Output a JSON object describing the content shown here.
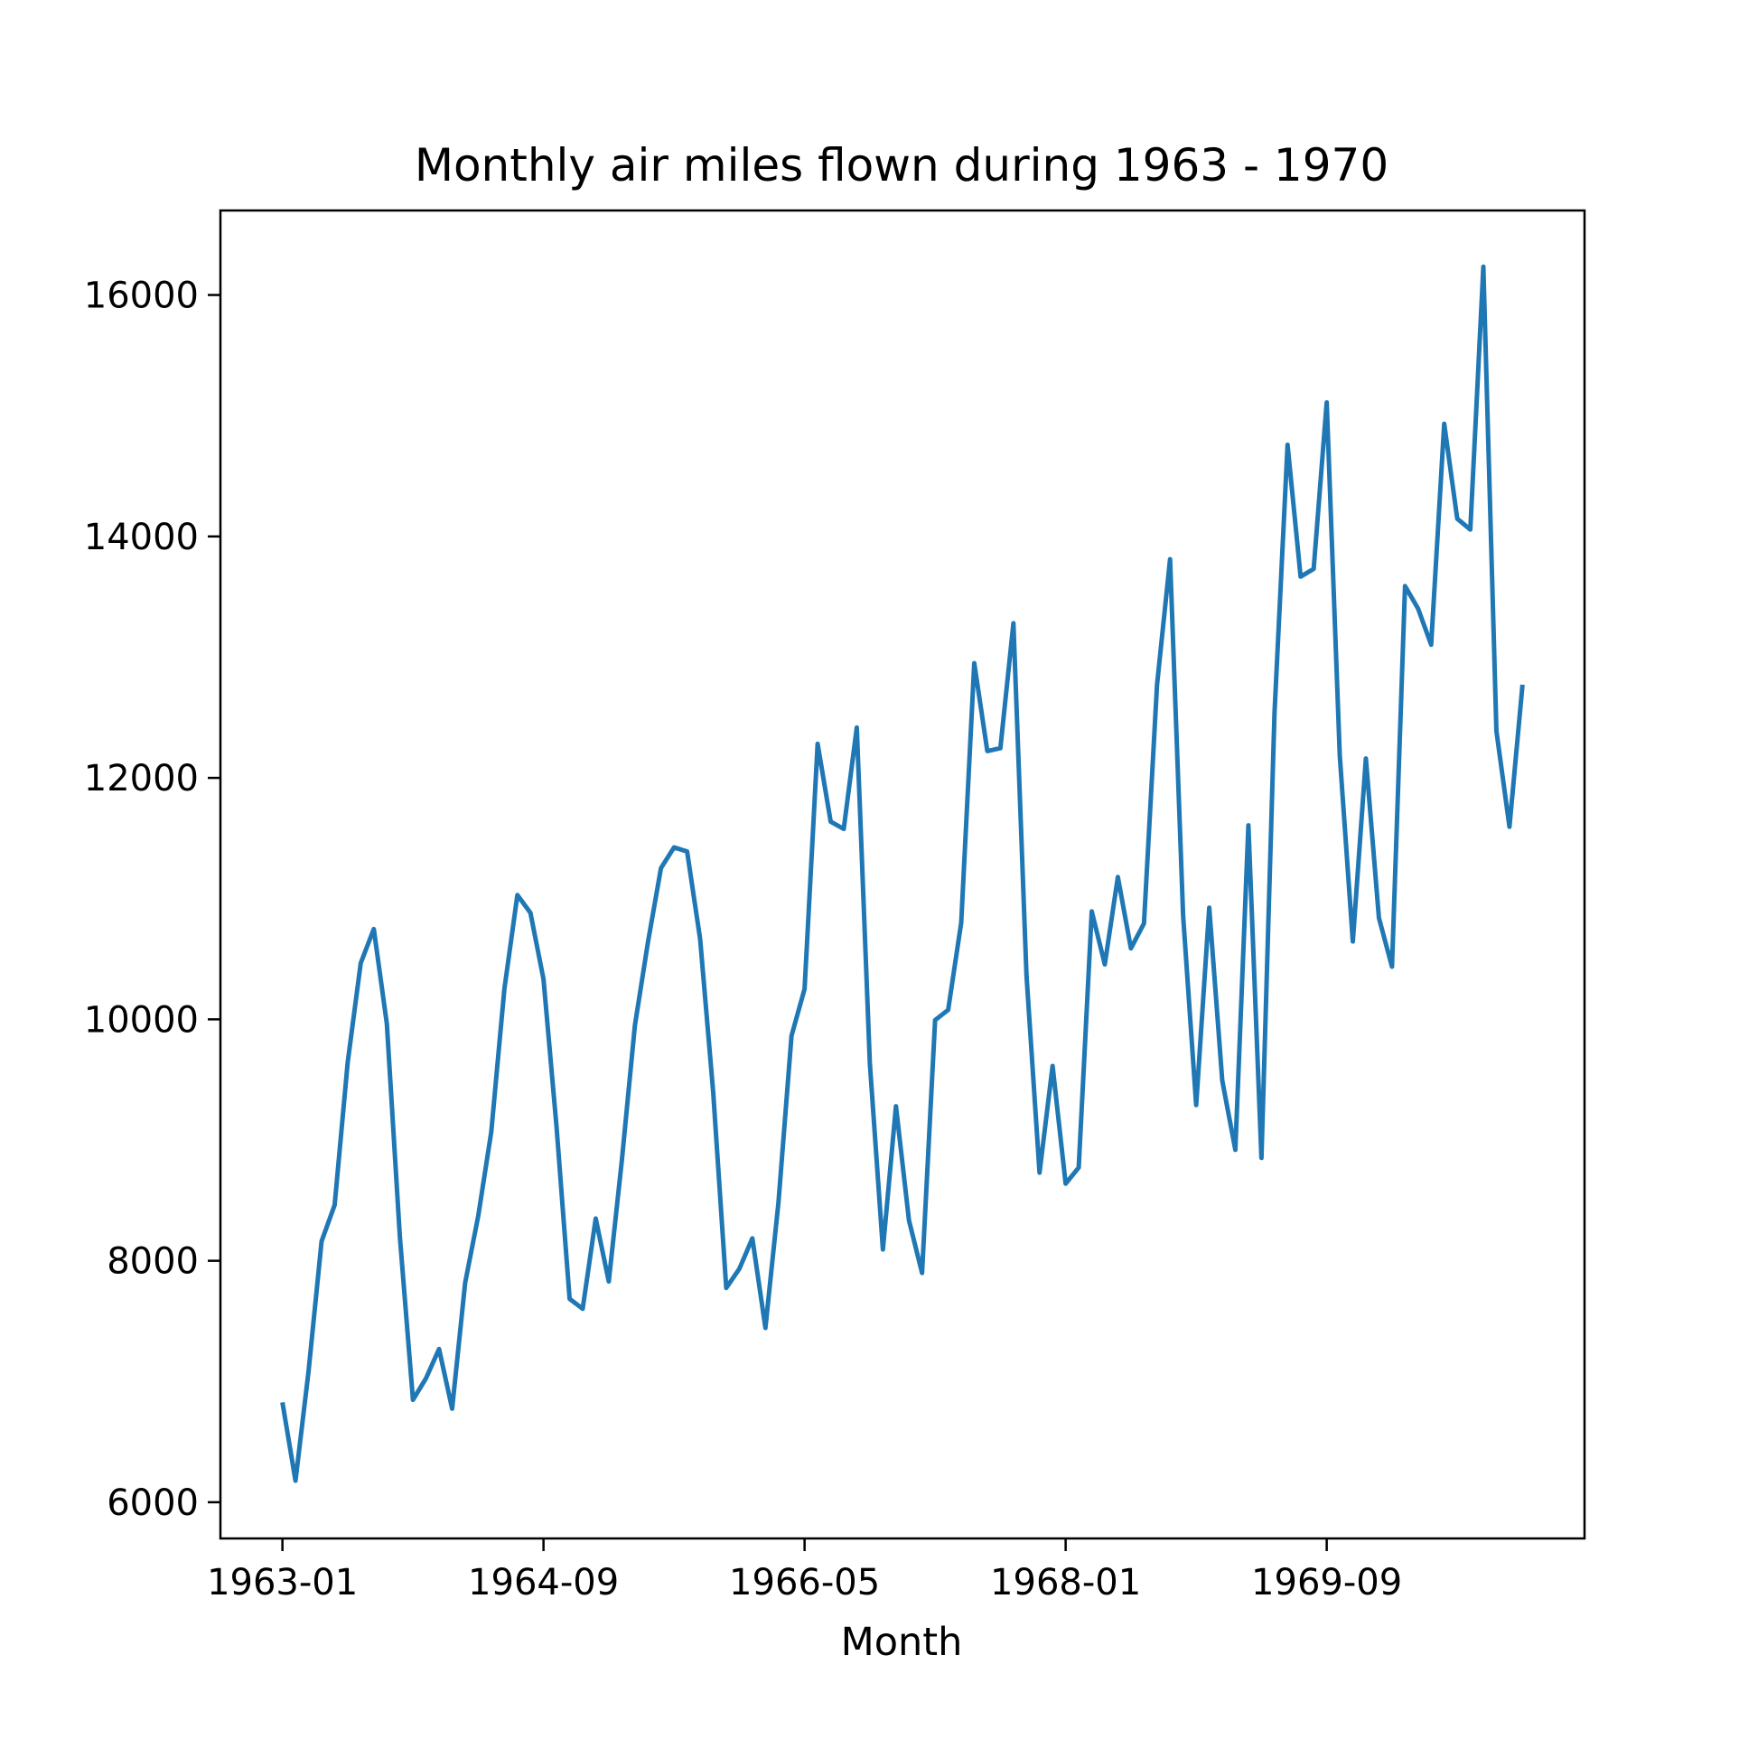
{
  "chart_data": {
    "type": "line",
    "title": "Monthly air miles flown during 1963 - 1970",
    "xlabel": "Month",
    "ylabel": "",
    "x_start": "1963-01",
    "x_end": "1970-12",
    "x_ticks": [
      "1963-01",
      "1964-09",
      "1966-05",
      "1968-01",
      "1969-09"
    ],
    "ylim": [
      5700,
      16700
    ],
    "y_ticks": [
      6000,
      8000,
      10000,
      12000,
      14000,
      16000
    ],
    "grid": false,
    "legend": "none",
    "series": [
      {
        "color": "#1f77b4",
        "x": [
          "1963-01",
          "1963-02",
          "1963-03",
          "1963-04",
          "1963-05",
          "1963-06",
          "1963-07",
          "1963-08",
          "1963-09",
          "1963-10",
          "1963-11",
          "1963-12",
          "1964-01",
          "1964-02",
          "1964-03",
          "1964-04",
          "1964-05",
          "1964-06",
          "1964-07",
          "1964-08",
          "1964-09",
          "1964-10",
          "1964-11",
          "1964-12",
          "1965-01",
          "1965-02",
          "1965-03",
          "1965-04",
          "1965-05",
          "1965-06",
          "1965-07",
          "1965-08",
          "1965-09",
          "1965-10",
          "1965-11",
          "1965-12",
          "1966-01",
          "1966-02",
          "1966-03",
          "1966-04",
          "1966-05",
          "1966-06",
          "1966-07",
          "1966-08",
          "1966-09",
          "1966-10",
          "1966-11",
          "1966-12",
          "1967-01",
          "1967-02",
          "1967-03",
          "1967-04",
          "1967-05",
          "1967-06",
          "1967-07",
          "1967-08",
          "1967-09",
          "1967-10",
          "1967-11",
          "1967-12",
          "1968-01",
          "1968-02",
          "1968-03",
          "1968-04",
          "1968-05",
          "1968-06",
          "1968-07",
          "1968-08",
          "1968-09",
          "1968-10",
          "1968-11",
          "1968-12",
          "1969-01",
          "1969-02",
          "1969-03",
          "1969-04",
          "1969-05",
          "1969-06",
          "1969-07",
          "1969-08",
          "1969-09",
          "1969-10",
          "1969-11",
          "1969-12",
          "1970-01",
          "1970-02",
          "1970-03",
          "1970-04",
          "1970-05",
          "1970-06",
          "1970-07",
          "1970-08",
          "1970-09",
          "1970-10",
          "1970-11",
          "1970-12"
        ],
        "values": [
          6827,
          6178,
          7084,
          8162,
          8462,
          9644,
          10466,
          10748,
          9963,
          8194,
          6848,
          7027,
          7269,
          6775,
          7819,
          8371,
          9069,
          10248,
          11030,
          10882,
          10333,
          9109,
          7685,
          7602,
          8350,
          7829,
          8829,
          9948,
          10638,
          11253,
          11424,
          11391,
          10665,
          9396,
          7775,
          7933,
          8186,
          7444,
          8484,
          9864,
          10252,
          12282,
          11637,
          11577,
          12417,
          9637,
          8094,
          9280,
          8334,
          7899,
          9994,
          10078,
          10801,
          12950,
          12222,
          12246,
          13281,
          10366,
          8730,
          9614,
          8639,
          8772,
          10894,
          10455,
          11179,
          10588,
          10794,
          12770,
          13812,
          10857,
          9290,
          10925,
          9491,
          8919,
          11607,
          8852,
          12537,
          14759,
          13667,
          13731,
          15110,
          12185,
          10645,
          12161,
          10840,
          10436,
          13589,
          13402,
          13103,
          14933,
          14147,
          14057,
          16234,
          12389,
          11595,
          12772
        ]
      }
    ]
  }
}
